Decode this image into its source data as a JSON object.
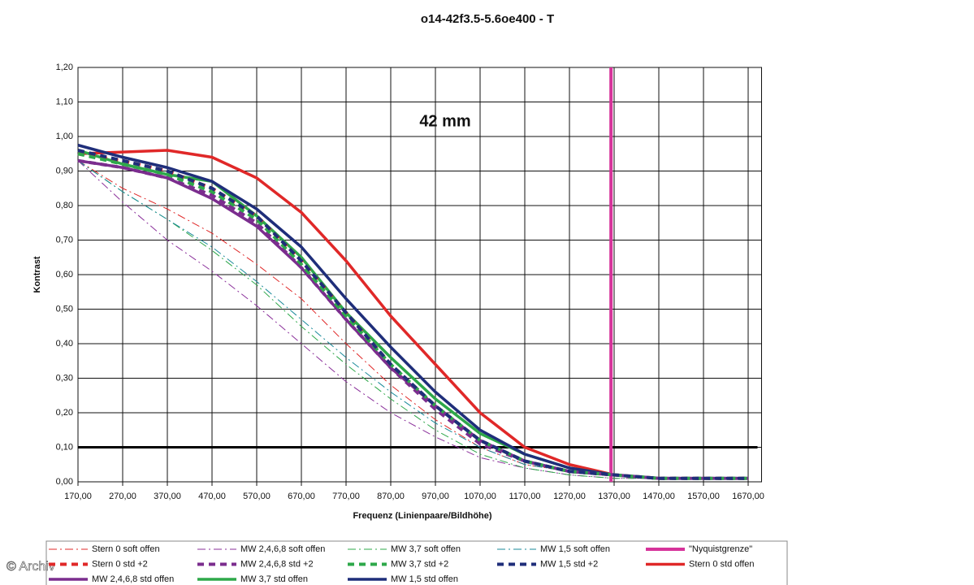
{
  "chart_data": {
    "type": "line",
    "title": "o14-42f3.5-5.6oe400 - T",
    "annotation": "42 mm",
    "x_label": "Frequenz (Linienpaare/Bildhöhe)",
    "y_label": "Kontrast",
    "watermark": "© Archiv",
    "x": [
      170,
      270,
      370,
      470,
      570,
      670,
      770,
      870,
      970,
      1070,
      1170,
      1270,
      1370,
      1470,
      1570,
      1670
    ],
    "xlim": [
      170,
      1700
    ],
    "ylim": [
      0,
      1.2
    ],
    "xticks": [
      {
        "value": 170,
        "label": "170,00"
      },
      {
        "value": 270,
        "label": "270,00"
      },
      {
        "value": 370,
        "label": "370,00"
      },
      {
        "value": 470,
        "label": "470,00"
      },
      {
        "value": 570,
        "label": "570,00"
      },
      {
        "value": 670,
        "label": "670,00"
      },
      {
        "value": 770,
        "label": "770,00"
      },
      {
        "value": 870,
        "label": "870,00"
      },
      {
        "value": 970,
        "label": "970,00"
      },
      {
        "value": 1070,
        "label": "1070,00"
      },
      {
        "value": 1170,
        "label": "1170,00"
      },
      {
        "value": 1270,
        "label": "1270,00"
      },
      {
        "value": 1370,
        "label": "1370,00"
      },
      {
        "value": 1470,
        "label": "1470,00"
      },
      {
        "value": 1570,
        "label": "1570,00"
      },
      {
        "value": 1670,
        "label": "1670,00"
      }
    ],
    "yticks": [
      {
        "value": 0,
        "label": "0,00"
      },
      {
        "value": 0.1,
        "label": "0,10"
      },
      {
        "value": 0.2,
        "label": "0,20"
      },
      {
        "value": 0.3,
        "label": "0,30"
      },
      {
        "value": 0.4,
        "label": "0,40"
      },
      {
        "value": 0.5,
        "label": "0,50"
      },
      {
        "value": 0.6,
        "label": "0,60"
      },
      {
        "value": 0.7,
        "label": "0,70"
      },
      {
        "value": 0.8,
        "label": "0,80"
      },
      {
        "value": 0.9,
        "label": "0,90"
      },
      {
        "value": 1.0,
        "label": "1,00"
      },
      {
        "value": 1.1,
        "label": "1,10"
      },
      {
        "value": 1.2,
        "label": "1,20"
      }
    ],
    "grid": true,
    "reference_line": {
      "value": 0.1,
      "color": "#000000"
    },
    "series": [
      {
        "name": "Stern 0 soft offen",
        "color": "#e02828",
        "style": "dashdot",
        "width": 1,
        "values": [
          0.93,
          0.85,
          0.79,
          0.72,
          0.63,
          0.53,
          0.4,
          0.28,
          0.18,
          0.1,
          0.05,
          0.03,
          0.02,
          0.01,
          0.01,
          0.01
        ]
      },
      {
        "name": "MW 2,4,6,8 soft offen",
        "color": "#8a2f9a",
        "style": "dashdot",
        "width": 1,
        "values": [
          0.93,
          0.81,
          0.7,
          0.61,
          0.51,
          0.4,
          0.29,
          0.2,
          0.13,
          0.07,
          0.04,
          0.02,
          0.01,
          0.01,
          0.01,
          0.01
        ]
      },
      {
        "name": "MW 3,7 soft offen",
        "color": "#2ea84a",
        "style": "dashdot",
        "width": 1,
        "values": [
          0.93,
          0.84,
          0.76,
          0.67,
          0.57,
          0.45,
          0.34,
          0.24,
          0.15,
          0.08,
          0.04,
          0.02,
          0.01,
          0.01,
          0.01,
          0.01
        ]
      },
      {
        "name": "MW 1,5 soft offen",
        "color": "#1a8a9a",
        "style": "dashdot",
        "width": 1,
        "values": [
          0.93,
          0.84,
          0.76,
          0.68,
          0.58,
          0.47,
          0.36,
          0.26,
          0.17,
          0.1,
          0.05,
          0.03,
          0.02,
          0.01,
          0.01,
          0.01
        ]
      },
      {
        "name": "\"Nyquistgrenze\"",
        "color": "#d6339a",
        "style": "solid",
        "width": 4,
        "vline": 1363
      },
      {
        "name": "Stern 0 std +2",
        "color": "#e02828",
        "style": "dash",
        "width": 4,
        "values": [
          0.95,
          0.93,
          0.9,
          0.85,
          0.77,
          0.64,
          0.49,
          0.34,
          0.22,
          0.12,
          0.06,
          0.03,
          0.02,
          0.01,
          0.01,
          0.01
        ]
      },
      {
        "name": "MW 2,4,6,8 std +2",
        "color": "#7b2d8e",
        "style": "dash",
        "width": 4,
        "values": [
          0.93,
          0.91,
          0.88,
          0.83,
          0.75,
          0.62,
          0.47,
          0.33,
          0.21,
          0.11,
          0.06,
          0.03,
          0.02,
          0.01,
          0.01,
          0.01
        ]
      },
      {
        "name": "MW 3,7 std +2",
        "color": "#2ea84a",
        "style": "dash",
        "width": 4,
        "values": [
          0.95,
          0.92,
          0.89,
          0.84,
          0.76,
          0.63,
          0.48,
          0.34,
          0.22,
          0.12,
          0.06,
          0.03,
          0.02,
          0.01,
          0.01,
          0.01
        ]
      },
      {
        "name": "MW 1,5 std +2",
        "color": "#1f2e7a",
        "style": "dash",
        "width": 4,
        "values": [
          0.96,
          0.93,
          0.9,
          0.85,
          0.77,
          0.64,
          0.49,
          0.34,
          0.22,
          0.12,
          0.06,
          0.03,
          0.02,
          0.01,
          0.01,
          0.01
        ]
      },
      {
        "name": "Stern 0 std offen",
        "color": "#e02828",
        "style": "solid",
        "width": 3.5,
        "values": [
          0.95,
          0.955,
          0.96,
          0.94,
          0.88,
          0.78,
          0.64,
          0.48,
          0.34,
          0.2,
          0.1,
          0.05,
          0.02,
          0.01,
          0.01,
          0.01
        ]
      },
      {
        "name": "MW 2,4,6,8 std offen",
        "color": "#7b2d8e",
        "style": "solid",
        "width": 3.5,
        "values": [
          0.93,
          0.91,
          0.88,
          0.82,
          0.74,
          0.62,
          0.47,
          0.33,
          0.22,
          0.12,
          0.06,
          0.03,
          0.02,
          0.01,
          0.01,
          0.01
        ]
      },
      {
        "name": "MW 3,7 std offen",
        "color": "#2ea84a",
        "style": "solid",
        "width": 3.5,
        "values": [
          0.96,
          0.92,
          0.89,
          0.87,
          0.77,
          0.65,
          0.49,
          0.36,
          0.24,
          0.14,
          0.08,
          0.04,
          0.02,
          0.01,
          0.01,
          0.01
        ]
      },
      {
        "name": "MW 1,5 std offen",
        "color": "#1f2e7a",
        "style": "solid",
        "width": 3.5,
        "values": [
          0.975,
          0.94,
          0.91,
          0.87,
          0.79,
          0.68,
          0.53,
          0.39,
          0.26,
          0.15,
          0.08,
          0.04,
          0.02,
          0.01,
          0.01,
          0.01
        ]
      }
    ]
  }
}
